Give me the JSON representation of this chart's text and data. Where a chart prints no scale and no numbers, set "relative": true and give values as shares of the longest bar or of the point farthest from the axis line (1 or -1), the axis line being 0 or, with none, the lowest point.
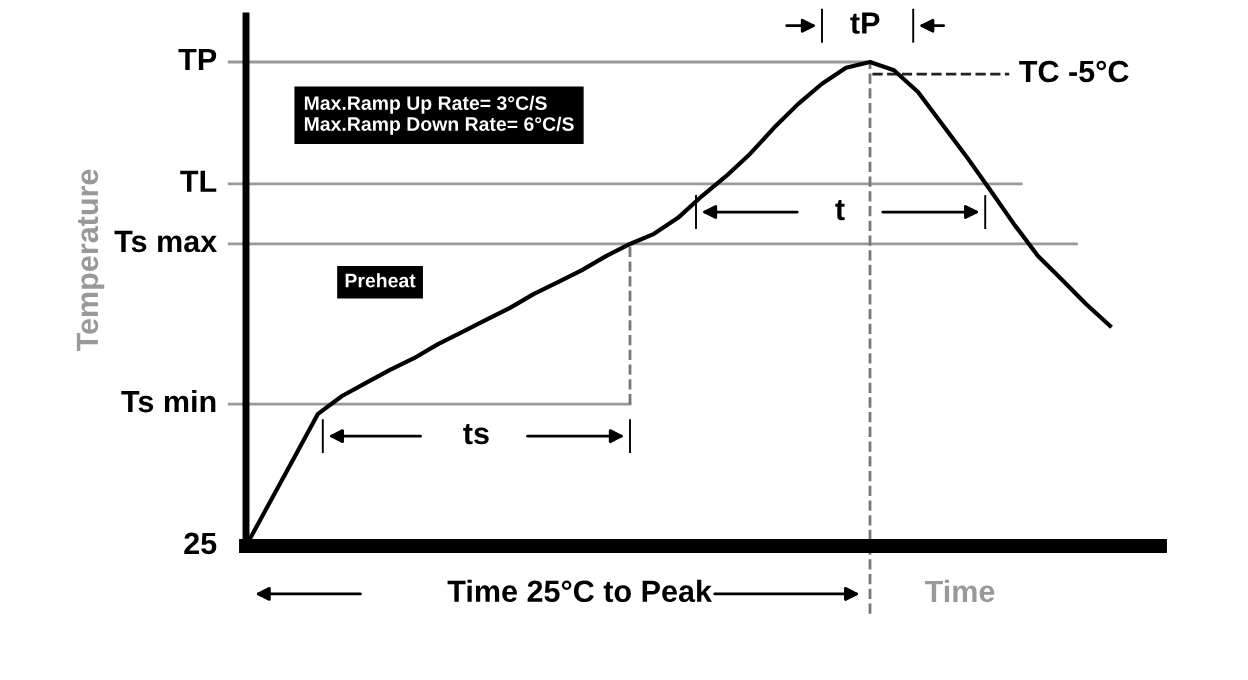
{
  "chart_data": {
    "type": "line",
    "relative": true,
    "ylabel": "Temperature",
    "xlabel": "Time",
    "categories": [
      null,
      null,
      null,
      null,
      null,
      null,
      null,
      null,
      null,
      null,
      null,
      null,
      null,
      null,
      null,
      null,
      null,
      null,
      null,
      null,
      null,
      null,
      null,
      null,
      null,
      null,
      null,
      null,
      null,
      null,
      null,
      null,
      null,
      null,
      null,
      null,
      null
    ],
    "series": [
      {
        "color": "#000000",
        "values": [
          0,
          0.091,
          0.182,
          0.273,
          0.31,
          0.337,
          0.364,
          0.388,
          0.417,
          0.442,
          0.467,
          0.492,
          0.521,
          0.545,
          0.57,
          0.599,
          0.624,
          0.645,
          0.678,
          0.723,
          0.764,
          0.81,
          0.864,
          0.913,
          0.955,
          0.988,
          1.0,
          0.983,
          0.938,
          0.872,
          0.806,
          0.736,
          0.665,
          0.599,
          0.55,
          0.5,
          0.455
        ]
      }
    ],
    "ref_lines": [
      {
        "axis": "y",
        "value": 1.0,
        "label": "TP",
        "color": "#999999"
      },
      {
        "axis": "y",
        "value": 0.748,
        "label": "TL",
        "color": "#999999"
      },
      {
        "axis": "y",
        "value": 0.624,
        "label": "Ts max",
        "color": "#999999"
      },
      {
        "axis": "y",
        "value": 0.293,
        "label": "Ts min",
        "color": "#999999"
      },
      {
        "axis": "y",
        "value": 0.975,
        "label": "TC -5°C",
        "color": "#222222",
        "line_style": "dashed"
      }
    ],
    "annotations": [
      "Max.Ramp Up Rate= 3°C/S\nMax.Ramp Down Rate= 6°C/S",
      "Preheat",
      "t",
      "Time 25°C to Peak",
      "25",
      "ts",
      "tP"
    ],
    "marker": "none",
    "line_style": "solid"
  }
}
